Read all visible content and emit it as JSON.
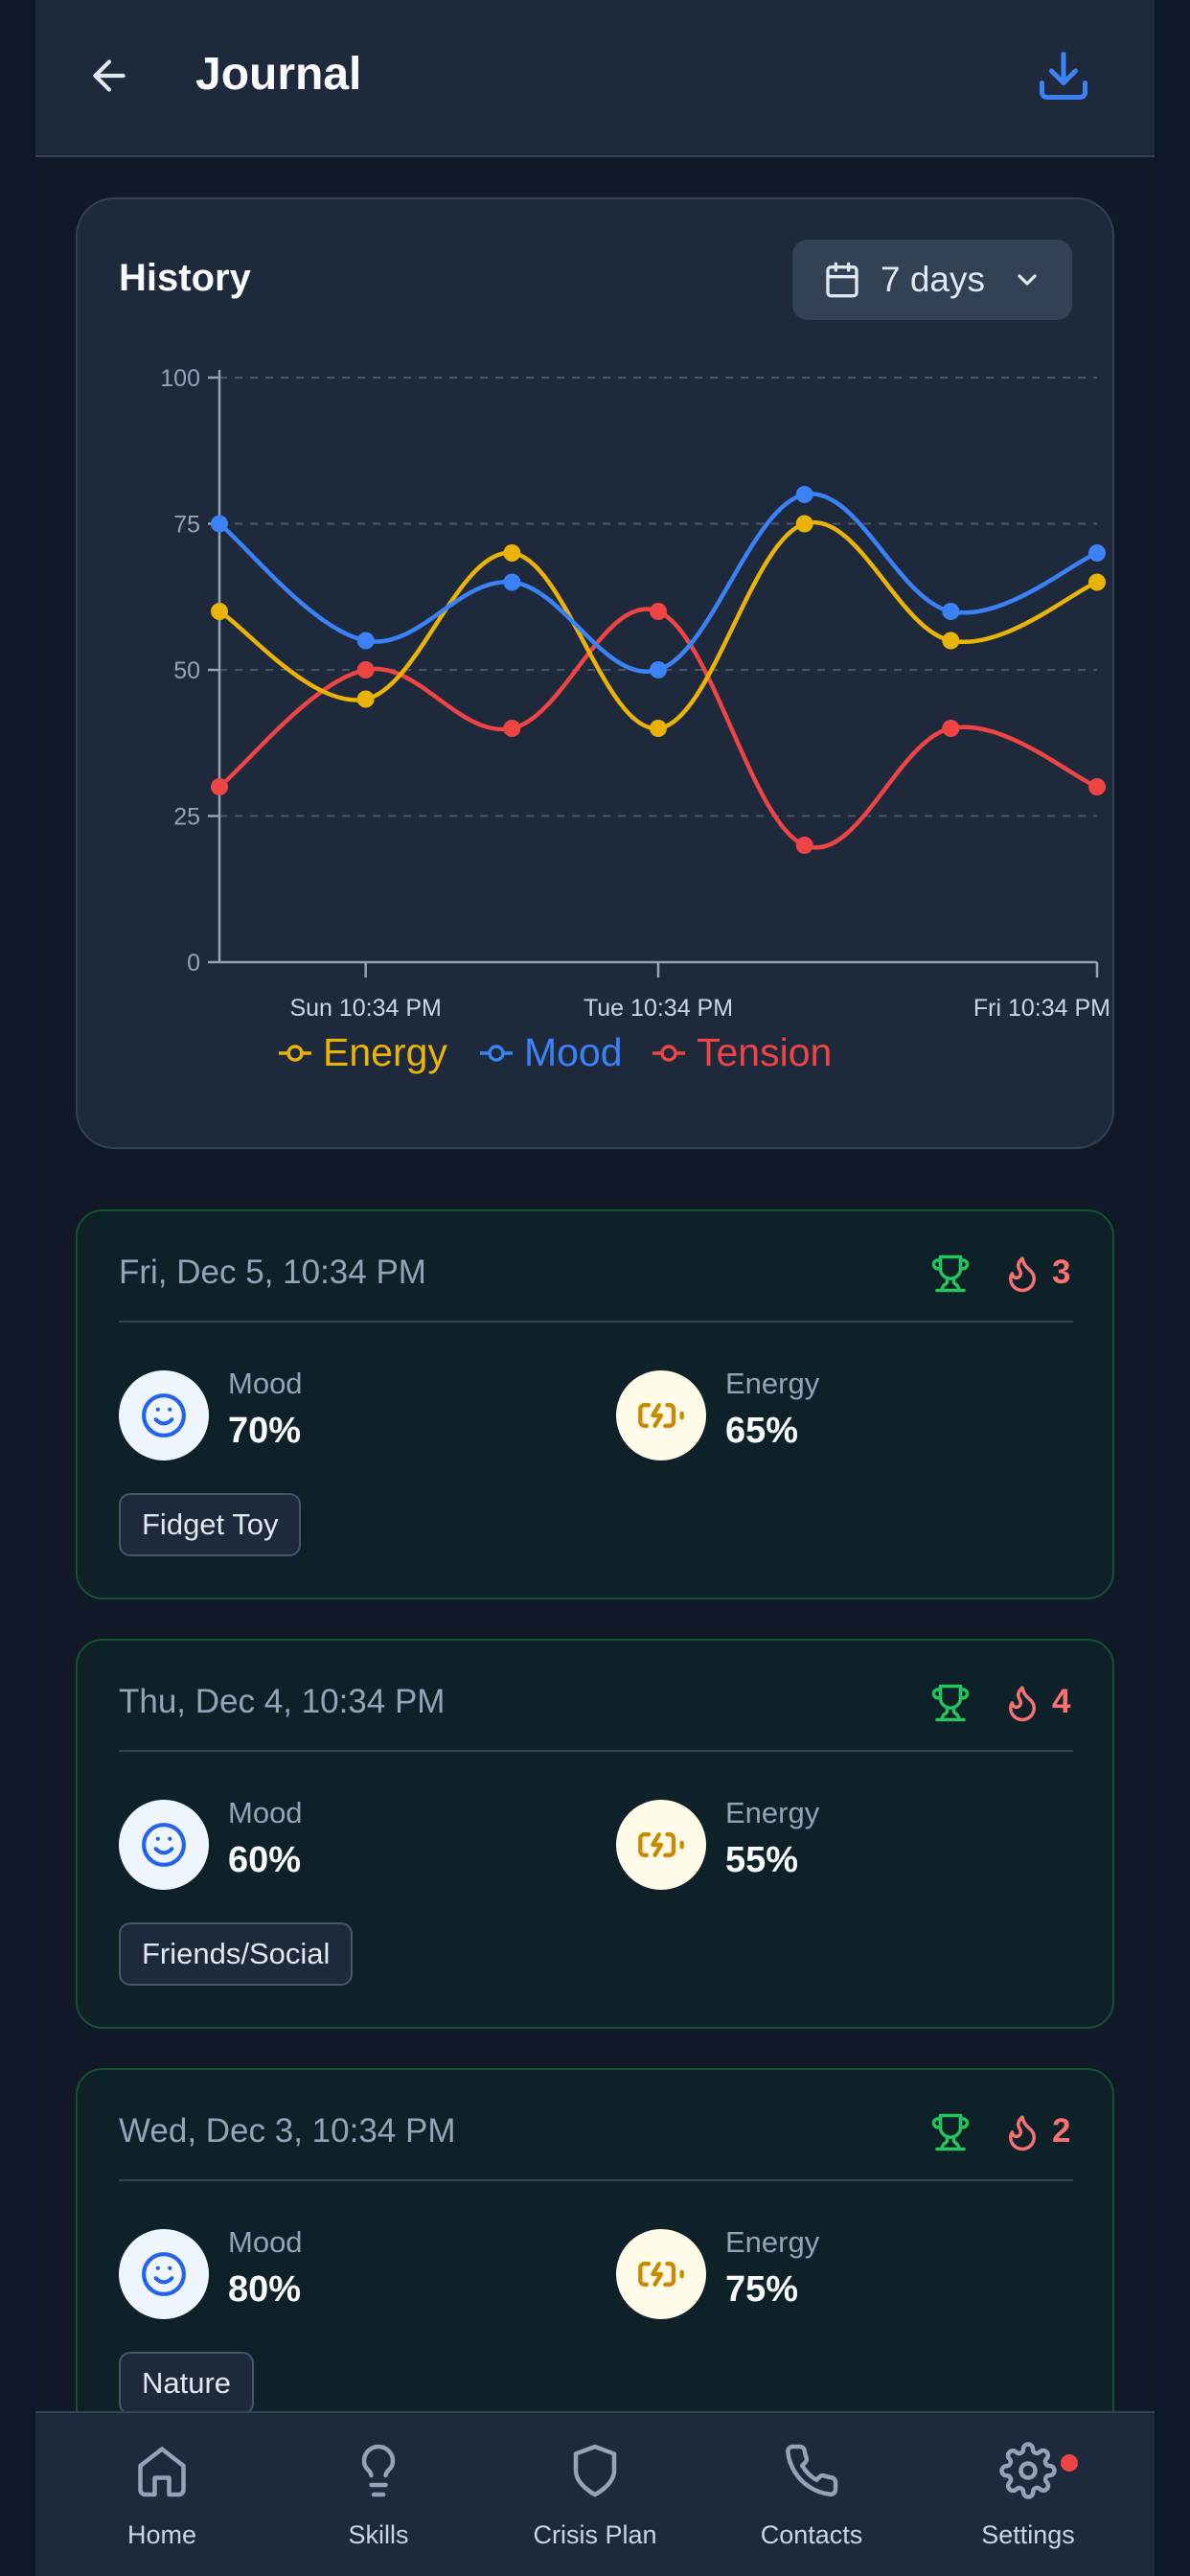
{
  "header": {
    "title": "Journal"
  },
  "history": {
    "title": "History",
    "range_label": "7 days",
    "chart_data": {
      "type": "line",
      "title": "History",
      "ylim": [
        0,
        100
      ],
      "y_ticks": [
        "0",
        "25",
        "50",
        "75",
        "100"
      ],
      "x_tick_labels": [
        "Sun 10:34 PM",
        "Tue 10:34 PM",
        "Fri 10:34 PM"
      ],
      "x_tick_positions": [
        1,
        3,
        6
      ],
      "x_count": 7,
      "series": [
        {
          "name": "Energy",
          "color": "#eab308",
          "values": [
            60,
            45,
            70,
            40,
            75,
            55,
            65
          ]
        },
        {
          "name": "Mood",
          "color": "#3b82f6",
          "values": [
            75,
            55,
            65,
            50,
            80,
            60,
            70
          ]
        },
        {
          "name": "Tension",
          "color": "#ef4444",
          "values": [
            30,
            50,
            40,
            60,
            20,
            40,
            30
          ]
        }
      ],
      "legend": "bottom"
    }
  },
  "entries": [
    {
      "date": "Fri, Dec 5, 10:34 PM",
      "streak": "3",
      "mood_label": "Mood",
      "mood_value": "70%",
      "energy_label": "Energy",
      "energy_value": "65%",
      "tag": "Fidget Toy"
    },
    {
      "date": "Thu, Dec 4, 10:34 PM",
      "streak": "4",
      "mood_label": "Mood",
      "mood_value": "60%",
      "energy_label": "Energy",
      "energy_value": "55%",
      "tag": "Friends/Social"
    },
    {
      "date": "Wed, Dec 3, 10:34 PM",
      "streak": "2",
      "mood_label": "Mood",
      "mood_value": "80%",
      "energy_label": "Energy",
      "energy_value": "75%",
      "tag": "Nature"
    }
  ],
  "nav": {
    "items": [
      {
        "label": "Home",
        "icon": "home-icon"
      },
      {
        "label": "Skills",
        "icon": "lightbulb-icon"
      },
      {
        "label": "Crisis Plan",
        "icon": "shield-icon"
      },
      {
        "label": "Contacts",
        "icon": "phone-icon"
      },
      {
        "label": "Settings",
        "icon": "gear-icon"
      }
    ]
  },
  "colors": {
    "accent": "#3b82f6",
    "energy": "#eab308",
    "tension": "#ef4444",
    "success": "#22c55e"
  }
}
